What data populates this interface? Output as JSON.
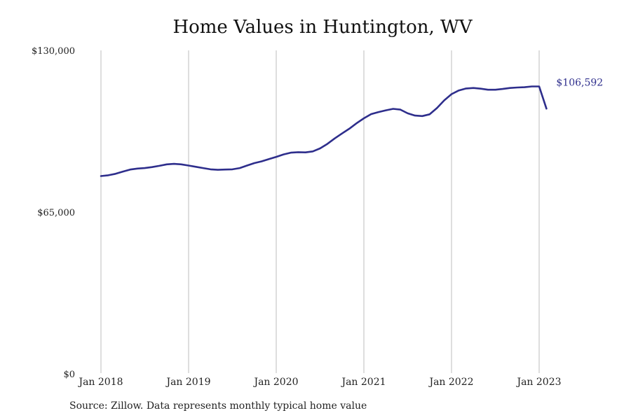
{
  "chart_data": {
    "type": "line",
    "title": "Home Values in Huntington, WV",
    "xlabel": "",
    "ylabel": "",
    "ylim": [
      0,
      130000
    ],
    "yticks": [
      0,
      65000,
      130000
    ],
    "ytick_labels": [
      "$0",
      "$65,000",
      "$130,000"
    ],
    "xticks": [
      "2018-01",
      "2019-01",
      "2020-01",
      "2021-01",
      "2022-01",
      "2023-01"
    ],
    "xtick_labels": [
      "Jan 2018",
      "Jan 2019",
      "Jan 2020",
      "Jan 2021",
      "Jan 2022",
      "Jan 2023"
    ],
    "grid": "vertical",
    "series_color": "#2e2e8c",
    "end_label": "$106,592",
    "x": [
      "2018-01",
      "2018-02",
      "2018-03",
      "2018-04",
      "2018-05",
      "2018-06",
      "2018-07",
      "2018-08",
      "2018-09",
      "2018-10",
      "2018-11",
      "2018-12",
      "2019-01",
      "2019-02",
      "2019-03",
      "2019-04",
      "2019-05",
      "2019-06",
      "2019-07",
      "2019-08",
      "2019-09",
      "2019-10",
      "2019-11",
      "2019-12",
      "2020-01",
      "2020-02",
      "2020-03",
      "2020-04",
      "2020-05",
      "2020-06",
      "2020-07",
      "2020-08",
      "2020-09",
      "2020-10",
      "2020-11",
      "2020-12",
      "2021-01",
      "2021-02",
      "2021-03",
      "2021-04",
      "2021-05",
      "2021-06",
      "2021-07",
      "2021-08",
      "2021-09",
      "2021-10",
      "2021-11",
      "2021-12",
      "2022-01",
      "2022-02",
      "2022-03",
      "2022-04",
      "2022-05",
      "2022-06",
      "2022-07",
      "2022-08",
      "2022-09",
      "2022-10",
      "2022-11",
      "2022-12",
      "2023-01",
      "2023-02"
    ],
    "values": [
      79500,
      79800,
      80400,
      81300,
      82100,
      82500,
      82700,
      83100,
      83600,
      84200,
      84400,
      84200,
      83700,
      83200,
      82700,
      82200,
      82000,
      82100,
      82200,
      82700,
      83700,
      84700,
      85400,
      86300,
      87200,
      88200,
      88900,
      89100,
      89000,
      89400,
      90600,
      92400,
      94600,
      96600,
      98500,
      100700,
      102700,
      104400,
      105200,
      105900,
      106500,
      106200,
      104700,
      103800,
      103600,
      104300,
      106800,
      109900,
      112400,
      113900,
      114700,
      114900,
      114600,
      114200,
      114200,
      114500,
      114900,
      115100,
      115200,
      115500,
      115500,
      106592
    ]
  },
  "source_note": "Source: Zillow. Data represents monthly typical home value"
}
